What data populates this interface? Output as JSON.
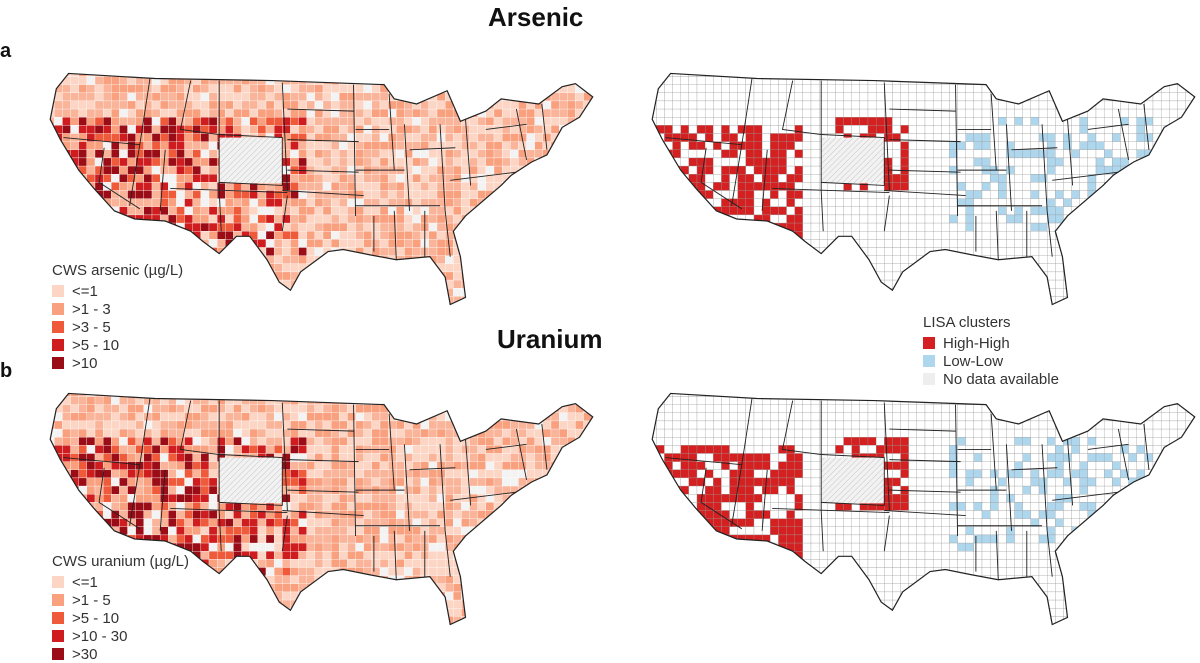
{
  "titles": {
    "arsenic": "Arsenic",
    "uranium": "Uranium"
  },
  "panels": {
    "a": "a",
    "b": "b"
  },
  "legends": {
    "arsenic": {
      "title": "CWS arsenic (µg/L)",
      "items": [
        {
          "label": "<=1",
          "color": "#fcd5c4"
        },
        {
          "label": ">1 - 3",
          "color": "#f9a07f"
        },
        {
          "label": ">3 - 5",
          "color": "#ef5a3a"
        },
        {
          "label": ">5 - 10",
          "color": "#cf1d1f"
        },
        {
          "label": ">10",
          "color": "#9b0d16"
        }
      ]
    },
    "uranium": {
      "title": "CWS uranium (µg/L)",
      "items": [
        {
          "label": "<=1",
          "color": "#fcd5c4"
        },
        {
          "label": ">1 - 5",
          "color": "#f9a07f"
        },
        {
          "label": ">5 - 10",
          "color": "#ef5a3a"
        },
        {
          "label": ">10 - 30",
          "color": "#cf1d1f"
        },
        {
          "label": ">30",
          "color": "#9b0d16"
        }
      ]
    },
    "lisa": {
      "title": "LISA clusters",
      "items": [
        {
          "label": "High-High",
          "color": "#d42020"
        },
        {
          "label": "Low-Low",
          "color": "#aed6ec"
        },
        {
          "label": "No data available",
          "color": "#eeeeee"
        }
      ]
    }
  },
  "colors": {
    "no_data": "#eeeeee",
    "outline": "#222222",
    "lisa_high": "#d42020",
    "lisa_low": "#aed6ec",
    "lisa_none": "#ffffff"
  }
}
